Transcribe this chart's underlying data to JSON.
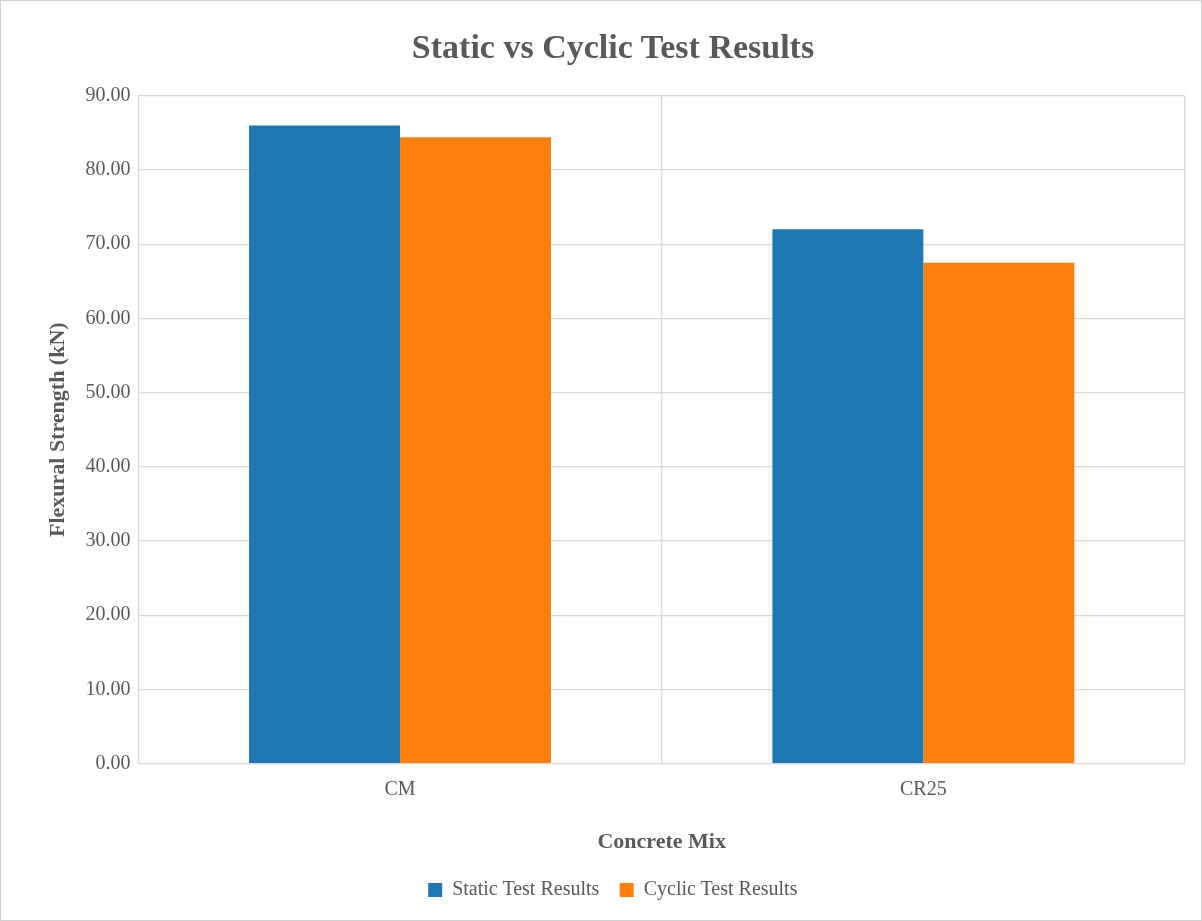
{
  "chart_data": {
    "type": "bar",
    "title": "Static vs Cyclic Test Results",
    "xlabel": "Concrete Mix",
    "ylabel": "Flexural Strength (kN)",
    "categories": [
      "CM",
      "CR25"
    ],
    "series": [
      {
        "name": "Static Test Results",
        "color": "#1f77b4",
        "values": [
          86.0,
          72.0
        ]
      },
      {
        "name": "Cyclic Test Results",
        "color": "#ff7f0e",
        "values": [
          84.4,
          67.5
        ]
      }
    ],
    "ylim": [
      0,
      90
    ],
    "yticks": [
      {
        "value": 0,
        "label": "0.00"
      },
      {
        "value": 10,
        "label": "10.00"
      },
      {
        "value": 20,
        "label": "20.00"
      },
      {
        "value": 30,
        "label": "30.00"
      },
      {
        "value": 40,
        "label": "40.00"
      },
      {
        "value": 50,
        "label": "50.00"
      },
      {
        "value": 60,
        "label": "60.00"
      },
      {
        "value": 70,
        "label": "70.00"
      },
      {
        "value": 80,
        "label": "80.00"
      },
      {
        "value": 90,
        "label": "90.00"
      }
    ],
    "grid": true,
    "legend": "bottom"
  }
}
